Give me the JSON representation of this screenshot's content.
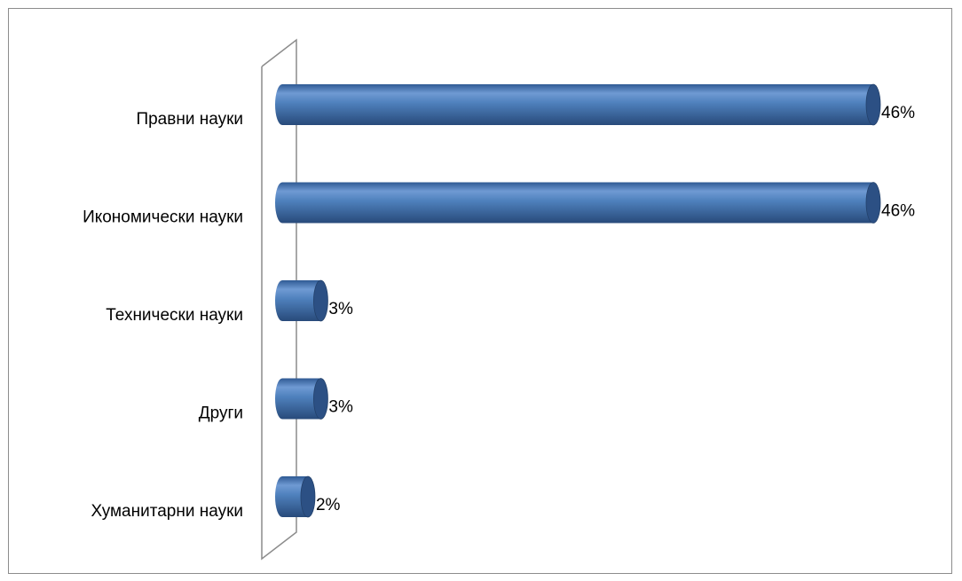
{
  "chart_data": {
    "type": "bar",
    "orientation": "horizontal",
    "style": "3d-cylinder",
    "categories": [
      "Правни науки",
      "Икономически науки",
      "Технически науки",
      "Други",
      "Хуманитарни науки"
    ],
    "values": [
      46,
      46,
      3,
      3,
      2
    ],
    "data_labels": [
      "46%",
      "46%",
      "3%",
      "3%",
      "2%"
    ],
    "value_unit": "%",
    "xlim": [
      0,
      46
    ],
    "grid": false,
    "legend": "none",
    "bar_color": "#4f81bd",
    "bar_dark": "#2c5084",
    "bar_light": "#8fb3e0",
    "wall_color": "#8c8c8c"
  }
}
